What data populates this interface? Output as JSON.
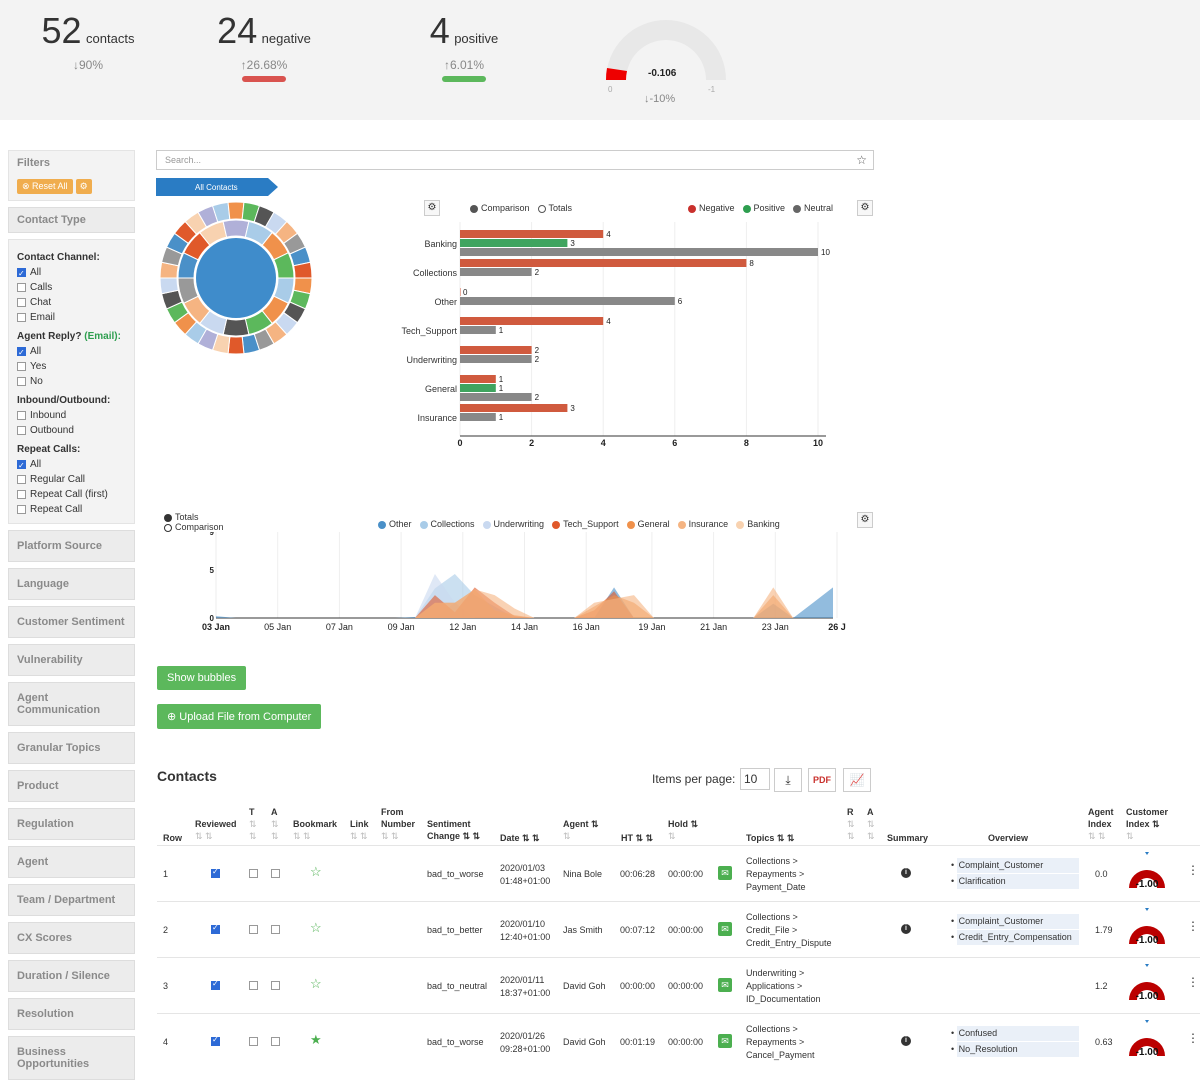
{
  "kpis": [
    {
      "value": "52",
      "unit": "contacts",
      "change": "↓90%"
    },
    {
      "value": "24",
      "unit": "negative",
      "change": "↑26.68%",
      "bar": "#d9534f"
    },
    {
      "value": "4",
      "unit": "positive",
      "change": "↑6.01%",
      "bar": "#5cb85c"
    }
  ],
  "gauge": {
    "value": "-0.106",
    "min": "0",
    "max": "-1",
    "change": "↓-10%",
    "level": -0.106
  },
  "sidebar": {
    "filters": "Filters",
    "reset": "⊗ Reset All",
    "gear": "⚙",
    "contact_type": "Contact Type",
    "groups": [
      {
        "title": "Contact Channel:",
        "options": [
          {
            "label": "All",
            "on": true
          },
          {
            "label": "Calls",
            "on": false
          },
          {
            "label": "Chat",
            "on": false
          },
          {
            "label": "Email",
            "on": false
          }
        ]
      },
      {
        "title": "Agent Reply? (Email):",
        "options": [
          {
            "label": "All",
            "on": true
          },
          {
            "label": "Yes",
            "on": false
          },
          {
            "label": "No",
            "on": false
          }
        ]
      },
      {
        "title": "Inbound/Outbound:",
        "options": [
          {
            "label": "Inbound",
            "on": false
          },
          {
            "label": "Outbound",
            "on": false
          }
        ]
      },
      {
        "title": "Repeat Calls:",
        "options": [
          {
            "label": "All",
            "on": true
          },
          {
            "label": "Regular Call",
            "on": false
          },
          {
            "label": "Repeat Call (first)",
            "on": false
          },
          {
            "label": "Repeat Call",
            "on": false
          }
        ]
      }
    ],
    "sections": [
      "Platform Source",
      "Language",
      "Customer Sentiment",
      "Vulnerability",
      "Agent Communication",
      "Granular Topics",
      "Product",
      "Regulation",
      "Agent",
      "Team / Department",
      "CX Scores",
      "Duration / Silence",
      "Resolution",
      "Business Opportunities"
    ]
  },
  "search": {
    "placeholder": "Search..."
  },
  "all_contacts": "All Contacts",
  "bar_legend": {
    "comparison": "Comparison",
    "totals": "Totals",
    "negative": "Negative",
    "positive": "Positive",
    "neutral": "Neutral"
  },
  "colors": {
    "negative": "#d05a3e",
    "positive": "#3fa45f",
    "neutral": "#888888"
  },
  "chart_data": [
    {
      "type": "bar",
      "orientation": "horizontal",
      "categories": [
        "Banking",
        "Collections",
        "Other",
        "Tech_Support",
        "Underwriting",
        "General",
        "Insurance"
      ],
      "series": [
        {
          "name": "Negative",
          "values": [
            4,
            8,
            0,
            4,
            2,
            1,
            3
          ]
        },
        {
          "name": "Positive",
          "values": [
            3,
            0,
            0,
            0,
            0,
            1,
            0
          ]
        },
        {
          "name": "Neutral",
          "values": [
            10,
            2,
            6,
            1,
            2,
            2,
            1
          ]
        }
      ],
      "xlim": [
        0,
        10
      ],
      "xticks": [
        0,
        2,
        4,
        6,
        8,
        10
      ]
    },
    {
      "type": "area",
      "x": [
        "03 Jan",
        "05 Jan",
        "07 Jan",
        "09 Jan",
        "12 Jan",
        "14 Jan",
        "16 Jan",
        "19 Jan",
        "21 Jan",
        "23 Jan",
        "26 J"
      ],
      "ylim": [
        0,
        9
      ],
      "yticks": [
        0,
        5,
        9
      ],
      "legend": [
        "Other",
        "Collections",
        "Underwriting",
        "Tech_Support",
        "General",
        "Insurance",
        "Banking"
      ],
      "legend_colors": [
        "#4a90c8",
        "#a9cce8",
        "#c9d9f0",
        "#e0592a",
        "#f0914b",
        "#f5b482",
        "#f8d2b0"
      ],
      "series_points": [
        [
          0.2,
          0,
          0,
          0,
          0,
          0,
          0,
          0,
          0,
          0,
          0.1,
          0,
          1.6,
          0,
          0,
          0,
          0,
          0,
          0,
          0,
          3.2,
          0,
          0,
          0,
          0,
          0,
          0,
          0,
          1.5,
          0,
          1.6,
          3.2
        ],
        [
          0,
          0,
          0,
          0,
          0,
          0,
          0,
          0,
          0,
          0,
          0,
          3.1,
          4.6,
          2.4,
          1.2,
          0,
          0,
          0,
          0,
          0,
          0,
          0,
          0,
          0,
          0,
          0,
          0,
          0,
          0,
          0,
          0,
          0
        ],
        [
          0,
          0,
          0,
          0,
          0,
          0,
          0,
          0,
          0,
          0,
          0,
          4.6,
          1.6,
          0,
          0,
          0,
          0,
          0,
          0,
          0,
          0,
          0,
          0,
          0,
          0,
          0,
          0,
          0,
          0,
          0,
          0,
          0
        ],
        [
          0,
          0,
          0,
          0,
          0,
          0,
          0,
          0,
          0,
          0,
          0,
          2.4,
          0.6,
          3.2,
          1.6,
          0.2,
          0,
          0,
          0,
          0.8,
          2.8,
          0,
          0,
          0,
          0,
          0,
          0,
          0,
          0,
          0,
          0,
          0
        ],
        [
          0,
          0,
          0,
          0,
          0,
          0,
          0,
          0,
          0,
          0,
          0,
          1.6,
          1.6,
          3.0,
          0.8,
          0.3,
          0,
          0,
          0,
          1.2,
          2.4,
          1.6,
          0,
          0,
          0,
          0,
          0,
          0,
          2.4,
          0,
          0,
          0
        ],
        [
          0,
          0,
          0,
          0,
          0,
          0,
          0,
          0,
          0,
          0,
          0,
          1.6,
          1.6,
          3.0,
          2.4,
          1.0,
          0,
          0,
          0,
          1.6,
          2.0,
          2.4,
          0,
          0,
          0,
          0,
          0,
          0,
          3.2,
          0,
          0,
          0
        ],
        [
          0,
          0,
          0,
          0,
          0,
          0,
          0,
          0,
          0,
          0,
          0,
          0,
          0,
          0,
          0,
          0,
          0,
          0,
          0,
          0,
          0,
          0,
          0,
          0,
          0,
          0,
          0,
          0,
          0,
          0,
          0,
          0
        ]
      ],
      "legend_left": [
        "Totals",
        "Comparison"
      ]
    }
  ],
  "buttons": {
    "bubbles": "Show bubbles",
    "upload": "⊕ Upload File from Computer"
  },
  "contacts": {
    "title": "Contacts",
    "ipp_label": "Items per page:",
    "ipp": "10",
    "headers": {
      "row": "Row",
      "reviewed": "Reviewed",
      "t": "T",
      "a": "A",
      "bookmark": "Bookmark",
      "link": "Link",
      "from": "From",
      "number": "Number",
      "sentiment": "Sentiment",
      "change": "Change",
      "date": "Date",
      "agent": "Agent",
      "ht": "HT",
      "hold": "Hold",
      "topics": "Topics",
      "r": "R",
      "a2": "A",
      "summary": "Summary",
      "overview": "Overview",
      "agent_idx": "Agent",
      "index": "Index",
      "cust_idx": "Customer",
      "cindex": "Index"
    },
    "rows": [
      {
        "row": "1",
        "sentiment": "bad_to_worse",
        "date": "2020/01/03",
        "time": "01:48+01:00",
        "agent": "Nina Bole",
        "ht": "00:06:28",
        "hold": "00:00:00",
        "topics": [
          "Collections >",
          "Repayments >",
          "Payment_Date"
        ],
        "summary": true,
        "overview": [
          "Complaint_Customer",
          "Clarification"
        ],
        "agent_index": "0.0",
        "customer_index": "-1.00",
        "bookmarked": false
      },
      {
        "row": "2",
        "sentiment": "bad_to_better",
        "date": "2020/01/10",
        "time": "12:40+01:00",
        "agent": "Jas Smith",
        "ht": "00:07:12",
        "hold": "00:00:00",
        "topics": [
          "Collections >",
          "Credit_File >",
          "Credit_Entry_Dispute"
        ],
        "summary": true,
        "overview": [
          "Complaint_Customer",
          "Credit_Entry_Compensation"
        ],
        "agent_index": "1.79",
        "customer_index": "-1.00",
        "bookmarked": false
      },
      {
        "row": "3",
        "sentiment": "bad_to_neutral",
        "date": "2020/01/11",
        "time": "18:37+01:00",
        "agent": "David Goh",
        "ht": "00:00:00",
        "hold": "00:00:00",
        "topics": [
          "Underwriting >",
          "Applications >",
          "ID_Documentation"
        ],
        "summary": false,
        "overview": [],
        "agent_index": "1.2",
        "customer_index": "-1.00",
        "bookmarked": false
      },
      {
        "row": "4",
        "sentiment": "bad_to_worse",
        "date": "2020/01/26",
        "time": "09:28+01:00",
        "agent": "David Goh",
        "ht": "00:01:19",
        "hold": "00:00:00",
        "topics": [
          "Collections >",
          "Repayments >",
          "Cancel_Payment"
        ],
        "summary": true,
        "overview": [
          "Confused",
          "No_Resolution"
        ],
        "agent_index": "0.63",
        "customer_index": "-1.00",
        "bookmarked": true
      }
    ]
  }
}
